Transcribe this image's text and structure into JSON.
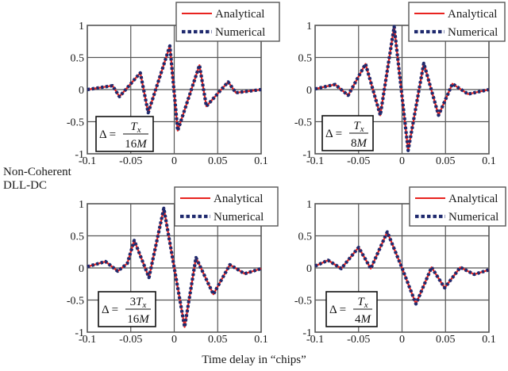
{
  "figure": {
    "side_label_line1": "Non-Coherent",
    "side_label_line2": "DLL-DC",
    "xlabel": "Time delay in “chips”"
  },
  "colors": {
    "analytical": "#e8231f",
    "numerical": "#1f2a6e",
    "grid": "#555555",
    "frame": "#555555"
  },
  "chart_data": [
    {
      "type": "line",
      "panel": "top-left",
      "annotation": {
        "lhs": "Δ =",
        "numerator": "T",
        "numerator_sub": "x",
        "numerator_coef": "",
        "denominator": "16M"
      },
      "xlim": [
        -0.1,
        0.1
      ],
      "ylim": [
        -1,
        1
      ],
      "xticks": [
        "-0.1",
        "-0.05",
        "0",
        "0.05",
        "0.1"
      ],
      "xtick_values": [
        -0.1,
        -0.05,
        0,
        0.05,
        0.1
      ],
      "yticks": [
        "1",
        "0.5",
        "0",
        "-0.5",
        "-1"
      ],
      "ytick_values": [
        1,
        0.5,
        0,
        -0.5,
        -1
      ],
      "grid": true,
      "legend": {
        "position": "top-right",
        "entries": [
          "Analytical",
          "Numerical"
        ]
      },
      "series": [
        {
          "name": "Analytical",
          "x": [
            -0.1,
            -0.071,
            -0.063,
            -0.039,
            -0.03,
            -0.005,
            0.004,
            0.029,
            0.037,
            0.062,
            0.071,
            0.1
          ],
          "y": [
            0.0,
            0.06,
            -0.11,
            0.26,
            -0.36,
            0.68,
            -0.64,
            0.38,
            -0.26,
            0.12,
            -0.05,
            0.0
          ]
        },
        {
          "name": "Numerical",
          "x": [
            -0.1,
            -0.071,
            -0.063,
            -0.039,
            -0.03,
            -0.005,
            0.004,
            0.029,
            0.037,
            0.062,
            0.071,
            0.1
          ],
          "y": [
            0.0,
            0.06,
            -0.11,
            0.26,
            -0.36,
            0.68,
            -0.64,
            0.38,
            -0.26,
            0.12,
            -0.05,
            0.0
          ]
        }
      ]
    },
    {
      "type": "line",
      "panel": "top-right",
      "annotation": {
        "lhs": "Δ =",
        "numerator": "T",
        "numerator_sub": "x",
        "numerator_coef": "",
        "denominator": "8M"
      },
      "xlim": [
        -0.1,
        0.1
      ],
      "ylim": [
        -1,
        1
      ],
      "xticks": [
        "-0.1",
        "-0.05",
        "0",
        "0.05",
        "0.1"
      ],
      "xtick_values": [
        -0.1,
        -0.05,
        0,
        0.05,
        0.1
      ],
      "yticks": [
        "1",
        "0.5",
        "0",
        "-0.5",
        "-1"
      ],
      "ytick_values": [
        1,
        0.5,
        0,
        -0.5,
        -1
      ],
      "grid": true,
      "legend": {
        "position": "top-right",
        "entries": [
          "Analytical",
          "Numerical"
        ]
      },
      "series": [
        {
          "name": "Analytical",
          "x": [
            -0.1,
            -0.077,
            -0.062,
            -0.042,
            -0.025,
            -0.009,
            0.007,
            0.025,
            0.042,
            0.058,
            0.076,
            0.1
          ],
          "y": [
            0.01,
            0.08,
            -0.09,
            0.4,
            -0.4,
            0.98,
            -0.95,
            0.41,
            -0.4,
            0.09,
            -0.07,
            0.0
          ]
        },
        {
          "name": "Numerical",
          "x": [
            -0.1,
            -0.077,
            -0.062,
            -0.042,
            -0.025,
            -0.009,
            0.007,
            0.025,
            0.042,
            0.058,
            0.076,
            0.1
          ],
          "y": [
            0.01,
            0.08,
            -0.09,
            0.4,
            -0.4,
            0.98,
            -0.95,
            0.41,
            -0.4,
            0.09,
            -0.07,
            0.0
          ]
        }
      ]
    },
    {
      "type": "line",
      "panel": "bottom-left",
      "annotation": {
        "lhs": "Δ =",
        "numerator": "T",
        "numerator_sub": "x",
        "numerator_coef": "3",
        "denominator": "16M"
      },
      "xlim": [
        -0.1,
        0.1
      ],
      "ylim": [
        -1,
        1
      ],
      "xticks": [
        "-0.1",
        "-0.05",
        "0",
        "0.05",
        "0.1"
      ],
      "xtick_values": [
        -0.1,
        -0.05,
        0,
        0.05,
        0.1
      ],
      "yticks": [
        "1",
        "0.5",
        "0",
        "-0.5",
        "-1"
      ],
      "ytick_values": [
        1,
        0.5,
        0,
        -0.5,
        -1
      ],
      "grid": true,
      "legend": {
        "position": "top-right",
        "entries": [
          "Analytical",
          "Numerical"
        ]
      },
      "series": [
        {
          "name": "Analytical",
          "x": [
            -0.1,
            -0.079,
            -0.065,
            -0.054,
            -0.046,
            -0.029,
            -0.012,
            0.012,
            0.025,
            0.045,
            0.064,
            0.081,
            0.1
          ],
          "y": [
            0.02,
            0.1,
            -0.05,
            0.07,
            0.43,
            -0.15,
            0.93,
            -0.92,
            0.16,
            -0.41,
            0.05,
            -0.09,
            -0.01
          ]
        },
        {
          "name": "Numerical",
          "x": [
            -0.1,
            -0.079,
            -0.065,
            -0.054,
            -0.046,
            -0.029,
            -0.012,
            0.012,
            0.025,
            0.045,
            0.064,
            0.081,
            0.1
          ],
          "y": [
            0.02,
            0.1,
            -0.05,
            0.07,
            0.43,
            -0.15,
            0.93,
            -0.92,
            0.16,
            -0.41,
            0.05,
            -0.09,
            -0.01
          ]
        }
      ]
    },
    {
      "type": "line",
      "panel": "bottom-right",
      "annotation": {
        "lhs": "Δ =",
        "numerator": "T",
        "numerator_sub": "x",
        "numerator_coef": "",
        "denominator": "4M"
      },
      "xlim": [
        -0.1,
        0.1
      ],
      "ylim": [
        -1,
        1
      ],
      "xticks": [
        "-0.1",
        "-0.05",
        "0",
        "0.05",
        "0.1"
      ],
      "xtick_values": [
        -0.1,
        -0.05,
        0,
        0.05,
        0.1
      ],
      "yticks": [
        "1",
        "0.5",
        "0",
        "-0.5",
        "-1"
      ],
      "ytick_values": [
        1,
        0.5,
        0,
        -0.5,
        -1
      ],
      "grid": true,
      "legend": {
        "position": "top-right",
        "entries": [
          "Analytical",
          "Numerical"
        ]
      },
      "series": [
        {
          "name": "Analytical",
          "x": [
            -0.1,
            -0.085,
            -0.07,
            -0.05,
            -0.036,
            -0.017,
            0.0,
            0.016,
            0.034,
            0.049,
            0.067,
            0.083,
            0.1
          ],
          "y": [
            0.03,
            0.12,
            -0.01,
            0.32,
            -0.01,
            0.56,
            0.0,
            -0.56,
            0.01,
            -0.31,
            0.01,
            -0.1,
            -0.03
          ]
        },
        {
          "name": "Numerical",
          "x": [
            -0.1,
            -0.085,
            -0.07,
            -0.05,
            -0.036,
            -0.017,
            0.0,
            0.016,
            0.034,
            0.049,
            0.067,
            0.083,
            0.1
          ],
          "y": [
            0.03,
            0.12,
            -0.01,
            0.32,
            -0.01,
            0.56,
            0.0,
            -0.56,
            0.01,
            -0.31,
            0.01,
            -0.1,
            -0.03
          ]
        }
      ]
    }
  ]
}
